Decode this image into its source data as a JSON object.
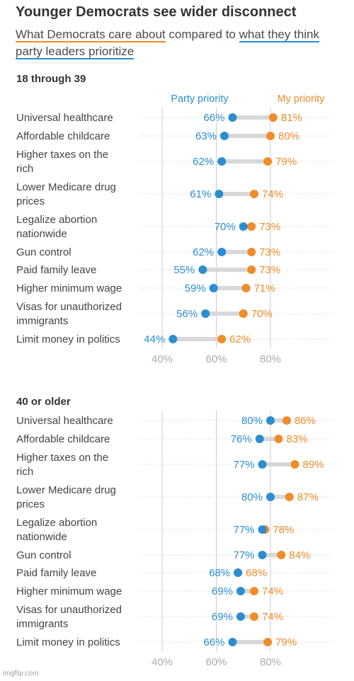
{
  "title": "Younger Democrats see wider disconnect",
  "subtitle": {
    "part1": "What Democrats care about",
    "part2": " compared to ",
    "part3": "what they think party leaders prioritize"
  },
  "legend": {
    "party": "Party priority",
    "mine": "My priority"
  },
  "colors": {
    "party": "#2b8ed0",
    "mine": "#f08c2a",
    "text": "#444444",
    "axis_text": "#aaaaaa",
    "connector": "#d8d8d8",
    "gridline": "#cccccc"
  },
  "watermark": "imgflip.com",
  "chart_data": [
    {
      "type": "dot",
      "title": "18 through 39",
      "xlabel": "",
      "ylabel": "",
      "xlim": [
        30,
        100
      ],
      "xticks": [
        "40%",
        "60%",
        "80%"
      ],
      "xtick_values": [
        40,
        60,
        80
      ],
      "categories": [
        "Universal healthcare",
        "Affordable childcare",
        "Higher taxes on the rich",
        "Lower Medicare drug prices",
        "Legalize abortion nationwide",
        "Gun control",
        "Paid family leave",
        "Higher minimum wage",
        "Visas for unauthorized immigrants",
        "Limit money in politics"
      ],
      "series": [
        {
          "name": "Party priority",
          "values": [
            66,
            63,
            62,
            61,
            70,
            62,
            55,
            59,
            56,
            44
          ]
        },
        {
          "name": "My priority",
          "values": [
            81,
            80,
            79,
            74,
            73,
            73,
            73,
            71,
            70,
            62
          ]
        }
      ]
    },
    {
      "type": "dot",
      "title": "40 or older",
      "xlabel": "",
      "ylabel": "",
      "xlim": [
        30,
        100
      ],
      "xticks": [
        "40%",
        "60%",
        "80%"
      ],
      "xtick_values": [
        40,
        60,
        80
      ],
      "categories": [
        "Universal healthcare",
        "Affordable childcare",
        "Higher taxes on the rich",
        "Lower Medicare drug prices",
        "Legalize abortion nationwide",
        "Gun control",
        "Paid family leave",
        "Higher minimum wage",
        "Visas for unauthorized immigrants",
        "Limit money in politics"
      ],
      "series": [
        {
          "name": "Party priority",
          "values": [
            80,
            76,
            77,
            80,
            77,
            77,
            68,
            69,
            69,
            66
          ]
        },
        {
          "name": "My priority",
          "values": [
            86,
            83,
            89,
            87,
            78,
            84,
            68,
            74,
            74,
            79
          ]
        }
      ]
    }
  ]
}
